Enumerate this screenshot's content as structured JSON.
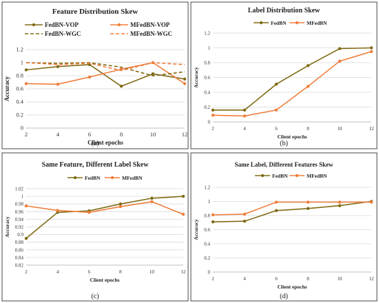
{
  "chart_data": [
    {
      "type": "line",
      "title": "Feature Distribution Skew",
      "xlabel": "Client epochs",
      "ylabel": "Accuracy",
      "caption": "(a)",
      "x": [
        2,
        4,
        6,
        8,
        10,
        12
      ],
      "yticks": [
        "0",
        "0.2",
        "0.4",
        "0.6",
        "0.8",
        "1",
        "1.2"
      ],
      "ylim": [
        0,
        1.2
      ],
      "grid": true,
      "legend_position": "top",
      "legend_columns": 2,
      "series": [
        {
          "name": "FedBN-VOP",
          "color": "#7f6a14",
          "dashed": false,
          "marker": true,
          "values": [
            0.89,
            0.94,
            0.97,
            0.64,
            0.83,
            0.75
          ]
        },
        {
          "name": "MFedBN-VOP",
          "color": "#f07d3a",
          "dashed": false,
          "marker": true,
          "values": [
            0.68,
            0.67,
            0.78,
            0.9,
            1.0,
            0.68
          ]
        },
        {
          "name": "FedBN-WGC",
          "color": "#7f6a14",
          "dashed": true,
          "marker": false,
          "values": [
            1.0,
            0.99,
            1.0,
            0.93,
            0.8,
            0.86
          ]
        },
        {
          "name": "MFedBN-WGC",
          "color": "#f07d3a",
          "dashed": true,
          "marker": false,
          "values": [
            1.0,
            0.97,
            0.99,
            0.88,
            1.0,
            0.97
          ]
        }
      ]
    },
    {
      "type": "line",
      "title": "Label Distribution Skew",
      "xlabel": "Client epochs",
      "ylabel": "Accuracy",
      "caption": "(b)",
      "x": [
        2,
        4,
        6,
        8,
        10,
        12
      ],
      "yticks": [
        "0",
        "0.2",
        "0.4",
        "0.6",
        "0.8",
        "1",
        "1.2"
      ],
      "ylim": [
        0,
        1.2
      ],
      "grid": true,
      "legend_position": "top",
      "legend_columns": 2,
      "series": [
        {
          "name": "FedBN",
          "color": "#7f6a14",
          "dashed": false,
          "marker": true,
          "values": [
            0.16,
            0.16,
            0.51,
            0.76,
            0.99,
            1.0
          ]
        },
        {
          "name": "MFedBN",
          "color": "#f07d3a",
          "dashed": false,
          "marker": true,
          "values": [
            0.09,
            0.08,
            0.16,
            0.48,
            0.82,
            0.95
          ]
        }
      ]
    },
    {
      "type": "line",
      "title": "Same Feature, Different Label Skew",
      "xlabel": "Client epochs",
      "ylabel": "Accuracy",
      "caption": "(c)",
      "x": [
        2,
        4,
        6,
        8,
        10,
        12
      ],
      "yticks": [
        "0.82",
        "0.84",
        "0.86",
        "0.88",
        "0.9",
        "0.92",
        "0.94",
        "0.96",
        "0.98",
        "1",
        "1.02"
      ],
      "ylim": [
        0.82,
        1.02
      ],
      "grid": true,
      "legend_position": "top",
      "legend_columns": 2,
      "series": [
        {
          "name": "FedBN",
          "color": "#7f6a14",
          "dashed": false,
          "marker": true,
          "values": [
            0.89,
            0.958,
            0.962,
            0.98,
            0.995,
            1.0
          ]
        },
        {
          "name": "MFedBN",
          "color": "#f07d3a",
          "dashed": false,
          "marker": true,
          "values": [
            0.975,
            0.963,
            0.958,
            0.973,
            0.986,
            0.953
          ]
        }
      ]
    },
    {
      "type": "line",
      "title": "Same Label, Different Features Skew",
      "xlabel": "Client epochs",
      "ylabel": "Accuracy",
      "caption": "(d)",
      "x": [
        2,
        4,
        6,
        8,
        10,
        12
      ],
      "yticks": [
        "0",
        "0.2",
        "0.4",
        "0.6",
        "0.8",
        "1",
        "1.2"
      ],
      "ylim": [
        0,
        1.2
      ],
      "grid": true,
      "legend_position": "top",
      "legend_columns": 2,
      "series": [
        {
          "name": "FedBN",
          "color": "#7f6a14",
          "dashed": false,
          "marker": true,
          "values": [
            0.71,
            0.72,
            0.87,
            0.9,
            0.94,
            1.0
          ]
        },
        {
          "name": "MFedBN",
          "color": "#f07d3a",
          "dashed": false,
          "marker": true,
          "values": [
            0.81,
            0.82,
            0.99,
            0.99,
            0.99,
            0.99
          ]
        }
      ]
    }
  ]
}
